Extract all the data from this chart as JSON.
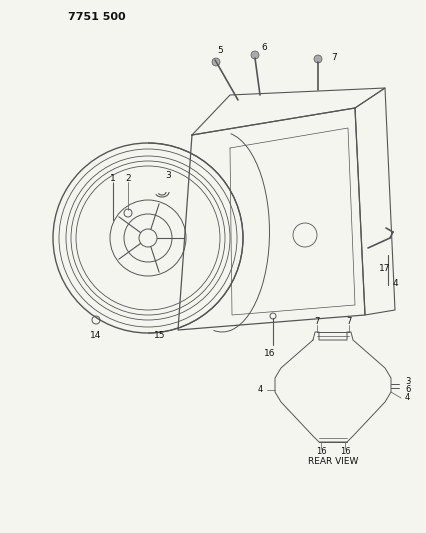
{
  "title": "7751 500",
  "background_color": "#f5f5f0",
  "line_color": "#555555",
  "text_color": "#111111",
  "fig_width": 4.27,
  "fig_height": 5.33,
  "dpi": 100
}
